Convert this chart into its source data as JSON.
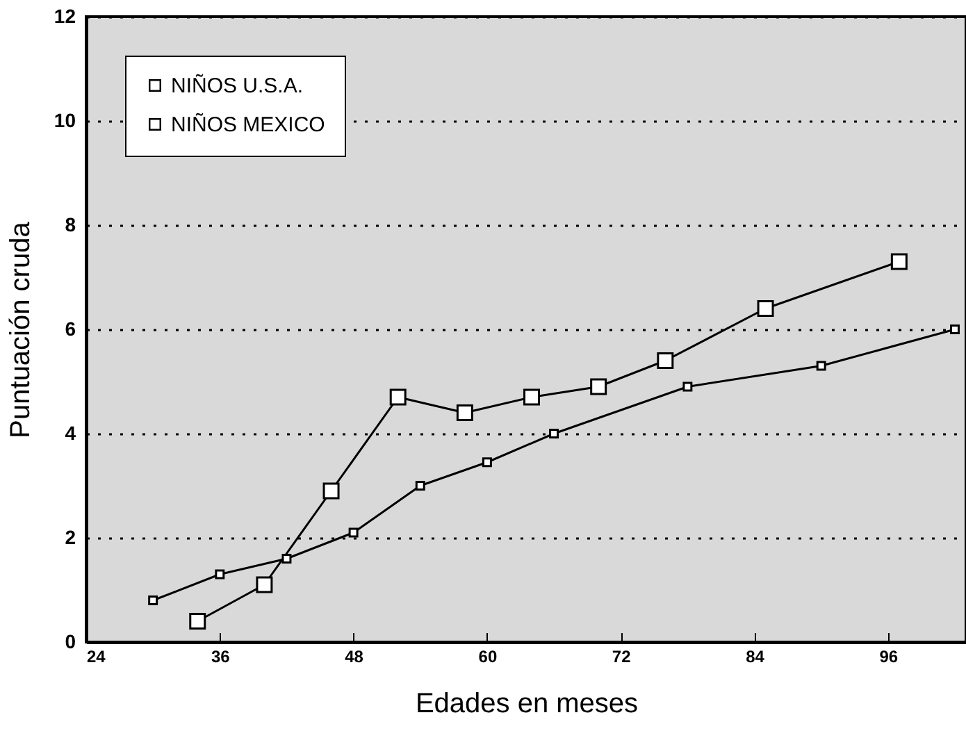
{
  "chart_data": {
    "type": "line",
    "xlabel": "Edades en meses",
    "ylabel": "Puntuación cruda",
    "xlim": [
      24,
      103
    ],
    "xticks": [
      24,
      36,
      48,
      60,
      72,
      84,
      96
    ],
    "ylim": [
      0,
      12
    ],
    "yticks": [
      0,
      2,
      4,
      6,
      8,
      10,
      12
    ],
    "grid": "y",
    "legend": "top left",
    "marker": "square",
    "line_style": "solid",
    "series": [
      {
        "name": "NIÑOS U.S.A.",
        "color": "#000000",
        "x": [
          30,
          36,
          42,
          48,
          54,
          60,
          66,
          78,
          90,
          102
        ],
        "values": [
          0.8,
          1.3,
          1.6,
          2.1,
          3.0,
          3.45,
          4.0,
          4.9,
          5.3,
          6.0
        ]
      },
      {
        "name": "NIÑOS MEXICO",
        "color": "#000000",
        "x": [
          34,
          40,
          46,
          52,
          58,
          64,
          70,
          76,
          85,
          97
        ],
        "values": [
          0.4,
          1.1,
          2.9,
          4.7,
          4.4,
          4.7,
          4.9,
          5.4,
          6.4,
          7.3
        ]
      }
    ]
  }
}
